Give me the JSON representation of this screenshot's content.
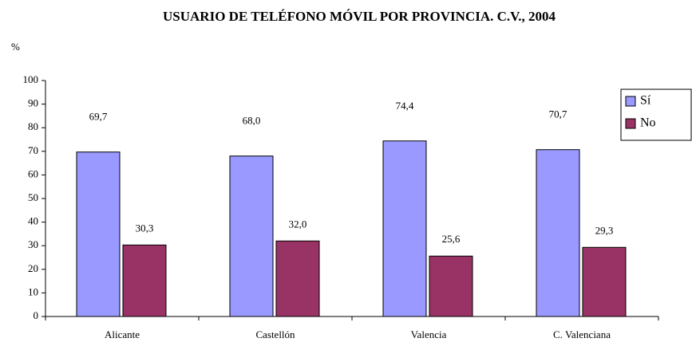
{
  "chart_data": {
    "type": "bar",
    "title": "USUARIO DE TELÉFONO MÓVIL POR PROVINCIA. C.V., 2004",
    "y_label": "%",
    "categories": [
      "Alicante",
      "Castellón",
      "Valencia",
      "C. Valenciana"
    ],
    "series": [
      {
        "name": "Sí",
        "color": "#9999ff",
        "values": [
          69.7,
          68.0,
          74.4,
          70.7
        ],
        "value_labels": [
          "69,7",
          "68,0",
          "74,4",
          "70,7"
        ]
      },
      {
        "name": "No",
        "color": "#993366",
        "values": [
          30.3,
          32.0,
          25.6,
          29.3
        ],
        "value_labels": [
          "30,3",
          "32,0",
          "25,6",
          "29,3"
        ]
      }
    ],
    "ylim": [
      0,
      100
    ],
    "yticks": [
      0,
      10,
      20,
      30,
      40,
      50,
      60,
      70,
      80,
      90,
      100
    ],
    "legend": "right"
  }
}
